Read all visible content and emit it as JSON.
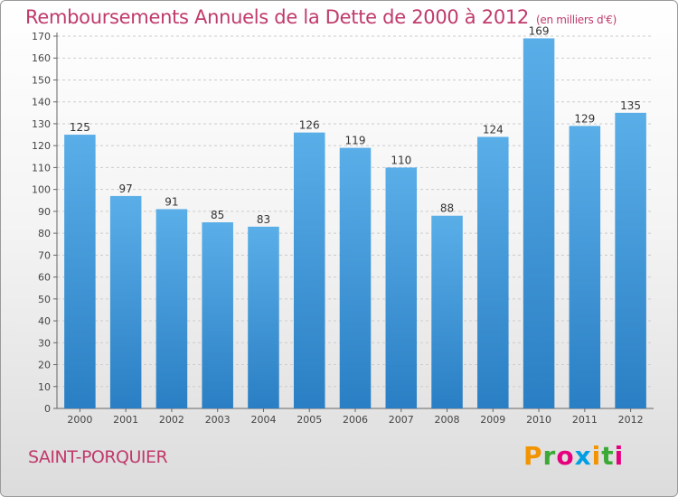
{
  "header": {
    "title": "Remboursements Annuels de la Dette de 2000 à 2012",
    "subtitle": "(en milliers d'€)"
  },
  "footer": {
    "city": "SAINT-PORQUIER",
    "logo_text": "Proxiti"
  },
  "colors": {
    "title": "#c03a6a",
    "bar_light": "#5aaee8",
    "bar_dark": "#2a7fc4",
    "logo_letters": [
      "#f29400",
      "#3aa935",
      "#e6007e",
      "#009fe3",
      "#f29400",
      "#3aa935",
      "#e6007e"
    ]
  },
  "chart_data": {
    "type": "bar",
    "categories": [
      "2000",
      "2001",
      "2002",
      "2003",
      "2004",
      "2005",
      "2006",
      "2007",
      "2008",
      "2009",
      "2010",
      "2011",
      "2012"
    ],
    "values": [
      125,
      97,
      91,
      85,
      83,
      126,
      119,
      110,
      88,
      124,
      169,
      129,
      135
    ],
    "title": "Remboursements Annuels de la Dette de 2000 à 2012",
    "xlabel": "",
    "ylabel": "",
    "ylim": [
      0,
      170
    ],
    "yticks": [
      0,
      10,
      20,
      30,
      40,
      50,
      60,
      70,
      80,
      90,
      100,
      110,
      120,
      130,
      140,
      150,
      160,
      170
    ],
    "grid": true,
    "legend": "none",
    "data_labels": true
  }
}
